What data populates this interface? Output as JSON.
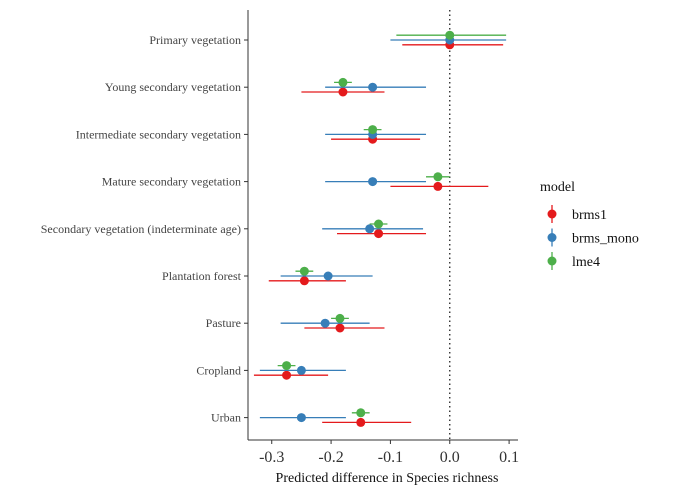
{
  "chart_data": {
    "type": "forest",
    "xlabel": "Predicted difference in Species richness",
    "ylabel": "",
    "xlim": [
      -0.34,
      0.115
    ],
    "x_ticks": [
      -0.3,
      -0.2,
      -0.1,
      0.0,
      0.1
    ],
    "x_tick_labels": [
      "-0.3",
      "-0.2",
      "-0.1",
      "0.0",
      "0.1"
    ],
    "reference_line": 0.0,
    "grid": false,
    "legend": {
      "title": "model",
      "position": "right"
    },
    "categories": [
      "Primary vegetation",
      "Young secondary vegetation",
      "Intermediate secondary vegetation",
      "Mature secondary vegetation",
      "Secondary vegetation (indeterminate age)",
      "Plantation forest",
      "Pasture",
      "Cropland",
      "Urban"
    ],
    "series": [
      {
        "name": "brms1",
        "color": "#e41a1c",
        "estimate": [
          0.0,
          -0.18,
          -0.13,
          -0.02,
          -0.12,
          -0.245,
          -0.185,
          -0.275,
          -0.15
        ],
        "lower": [
          -0.08,
          -0.25,
          -0.2,
          -0.1,
          -0.19,
          -0.305,
          -0.245,
          -0.33,
          -0.215
        ],
        "upper": [
          0.09,
          -0.11,
          -0.05,
          0.065,
          -0.04,
          -0.175,
          -0.11,
          -0.205,
          -0.065
        ]
      },
      {
        "name": "brms_mono",
        "color": "#377eb8",
        "estimate": [
          0.0,
          -0.13,
          -0.13,
          -0.13,
          -0.135,
          -0.205,
          -0.21,
          -0.25,
          -0.25
        ],
        "lower": [
          -0.1,
          -0.21,
          -0.21,
          -0.21,
          -0.215,
          -0.285,
          -0.285,
          -0.32,
          -0.32
        ],
        "upper": [
          0.095,
          -0.04,
          -0.04,
          -0.04,
          -0.045,
          -0.13,
          -0.135,
          -0.175,
          -0.175
        ]
      },
      {
        "name": "lme4",
        "color": "#4daf4a",
        "estimate": [
          0.0,
          -0.18,
          -0.13,
          -0.02,
          -0.12,
          -0.245,
          -0.185,
          -0.275,
          -0.15
        ],
        "lower": [
          -0.09,
          -0.195,
          -0.145,
          -0.04,
          -0.135,
          -0.26,
          -0.2,
          -0.29,
          -0.165
        ],
        "upper": [
          0.095,
          -0.165,
          -0.115,
          0.0,
          -0.105,
          -0.23,
          -0.17,
          -0.26,
          -0.135
        ]
      }
    ]
  }
}
